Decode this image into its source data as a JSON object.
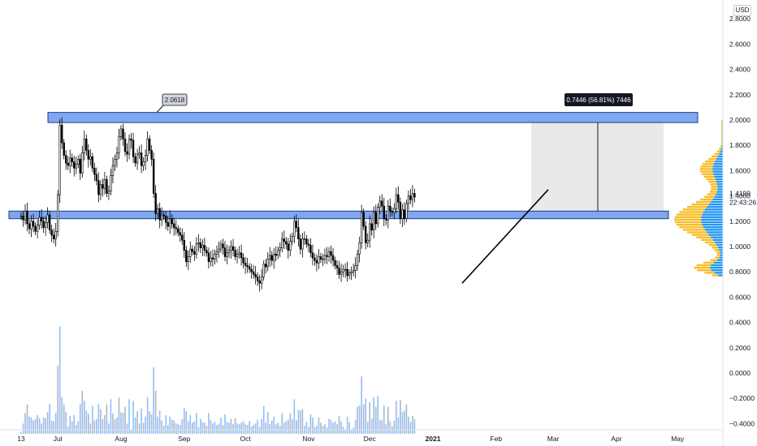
{
  "currency": "USD",
  "chart_data": {
    "type": "candlestick",
    "y_axis": {
      "ticks": [
        2.8,
        2.6,
        2.4,
        2.2,
        2.0,
        1.8,
        1.6,
        1.4,
        1.2,
        1.0,
        0.8,
        0.6,
        0.4,
        0.2,
        0.0,
        -0.2,
        -0.4
      ],
      "tick_labels": [
        "2.8000",
        "2.6000",
        "2.4000",
        "2.2000",
        "2.0000",
        "1.8000",
        "1.6000",
        "1.4000",
        "1.2000",
        "1.0000",
        "0.8000",
        "0.6000",
        "0.4000",
        "0.2000",
        "0.0000",
        "−0.2000",
        "−0.4000"
      ],
      "ylim": [
        -0.47,
        2.93
      ]
    },
    "x_axis": {
      "labels": [
        "13",
        "Jul",
        "Aug",
        "Sep",
        "Oct",
        "Nov",
        "Dec",
        "2021",
        "Feb",
        "Mar",
        "Apr",
        "May"
      ],
      "label_days": [
        0,
        18,
        49,
        80,
        110,
        141,
        171,
        202,
        233,
        261,
        292,
        322
      ]
    },
    "series_close": [
      1.24,
      1.21,
      1.28,
      1.18,
      1.14,
      1.2,
      1.16,
      1.12,
      1.17,
      1.23,
      1.2,
      1.15,
      1.19,
      1.25,
      1.13,
      1.09,
      1.06,
      1.12,
      1.41,
      1.96,
      1.82,
      1.72,
      1.66,
      1.64,
      1.7,
      1.67,
      1.62,
      1.65,
      1.69,
      1.58,
      1.74,
      1.85,
      1.76,
      1.69,
      1.71,
      1.62,
      1.57,
      1.52,
      1.41,
      1.49,
      1.46,
      1.53,
      1.42,
      1.44,
      1.56,
      1.64,
      1.69,
      1.74,
      1.87,
      1.93,
      1.85,
      1.75,
      1.73,
      1.85,
      1.84,
      1.71,
      1.66,
      1.73,
      1.74,
      1.64,
      1.67,
      1.72,
      1.85,
      1.76,
      1.69,
      1.42,
      1.26,
      1.3,
      1.21,
      1.25,
      1.24,
      1.19,
      1.16,
      1.22,
      1.18,
      1.15,
      1.14,
      1.11,
      1.09,
      1.05,
      0.97,
      0.88,
      0.92,
      0.98,
      0.96,
      0.94,
      1.02,
      1.03,
      0.99,
      1.01,
      0.97,
      0.95,
      0.88,
      0.91,
      0.9,
      0.94,
      0.96,
      0.98,
      1.02,
      0.99,
      0.92,
      0.95,
      0.97,
      1.0,
      0.97,
      0.92,
      0.94,
      0.95,
      0.91,
      0.87,
      0.85,
      0.84,
      0.82,
      0.8,
      0.78,
      0.76,
      0.73,
      0.71,
      0.76,
      0.86,
      0.84,
      0.9,
      0.93,
      0.89,
      0.94,
      0.93,
      0.97,
      0.99,
      1.06,
      1.04,
      1.02,
      0.97,
      1.04,
      1.08,
      1.2,
      1.15,
      1.06,
      0.98,
      1.06,
      1.06,
      1.02,
      1.01,
      0.95,
      0.91,
      0.89,
      0.87,
      0.92,
      0.9,
      0.9,
      0.93,
      0.92,
      0.96,
      0.93,
      0.89,
      0.85,
      0.83,
      0.78,
      0.8,
      0.82,
      0.82,
      0.77,
      0.79,
      0.8,
      0.81,
      0.85,
      0.94,
      1.03,
      1.27,
      1.16,
      1.03,
      1.05,
      1.18,
      1.13,
      1.27,
      1.18,
      1.31,
      1.36,
      1.32,
      1.22,
      1.21,
      1.32,
      1.28,
      1.27,
      1.3,
      1.41,
      1.35,
      1.22,
      1.29,
      1.22,
      1.34,
      1.4,
      1.37,
      1.42,
      1.39
    ],
    "annotations": {
      "resistance_zone": {
        "low": 1.98,
        "high": 2.06
      },
      "support_zone": {
        "low": 1.22,
        "high": 1.28
      },
      "high_label": "2.0618",
      "measure_label": "0.7446 (56.81%) 7446",
      "price_label": "1.4199",
      "countdown_label": "22:43:26"
    },
    "volume": {
      "visible": true
    }
  },
  "colors": {
    "zone_fill": "#7fa6ef",
    "zone_stroke": "#1c3f8a",
    "candle": "#000000",
    "grid_text": "#131722",
    "vol_gray": "#b2b5be",
    "vol_blue": "#90bff9",
    "vp_blue": "#2196f3",
    "vp_yellow": "#f6b70f",
    "measure_fill": "#e5e5e5"
  }
}
